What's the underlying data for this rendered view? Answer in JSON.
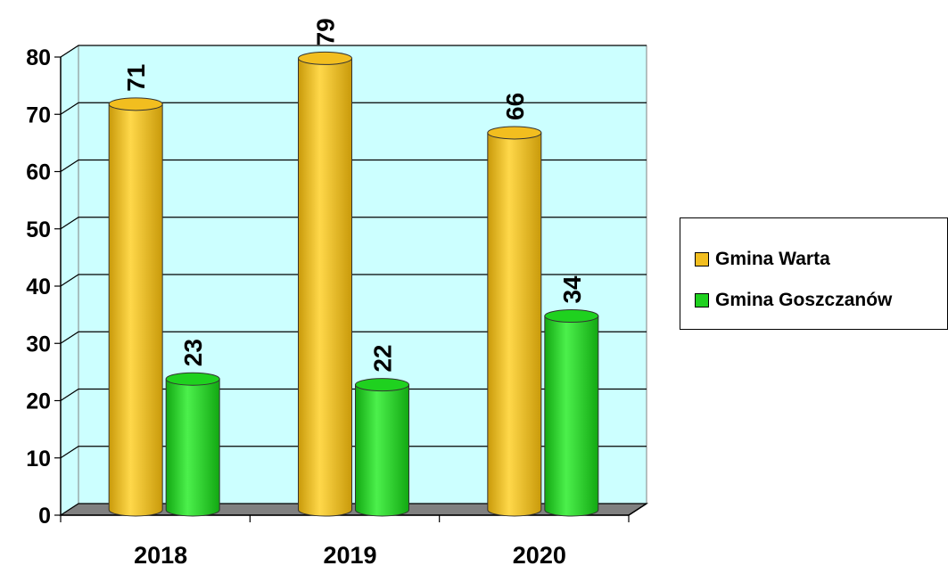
{
  "chart_data": {
    "type": "bar",
    "categories": [
      "2018",
      "2019",
      "2020"
    ],
    "series": [
      {
        "name": "Gmina Warta",
        "values": [
          71,
          79,
          66
        ],
        "color": "#F2BE1F"
      },
      {
        "name": "Gmina Goszczanów",
        "values": [
          23,
          22,
          34
        ],
        "color": "#1FD11F"
      }
    ],
    "ylim": [
      0,
      80
    ],
    "yticks": [
      "0",
      "10",
      "20",
      "30",
      "40",
      "50",
      "60",
      "70",
      "80"
    ],
    "grid": true,
    "legend": "right",
    "plot_background": "#CCFFFF",
    "floor_color": "#808080"
  }
}
